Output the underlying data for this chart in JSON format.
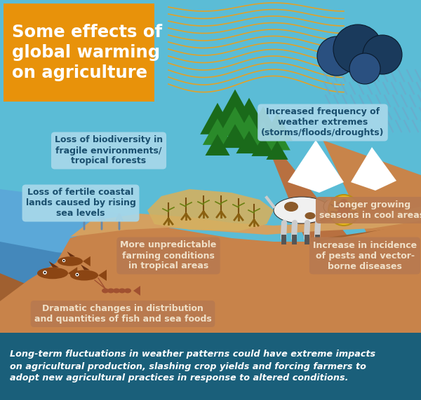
{
  "bg_color": "#5bbcd6",
  "footer_bg_color": "#1a5f7a",
  "title_bg_color": "#e8920a",
  "title_color": "#ffffff",
  "footer_color": "#ffffff",
  "label_bg_light": "#a8d8ea",
  "label_bg_brown": "#b87a50",
  "label_tc_dark": "#1a4f6e",
  "label_tc_light": "#f0e0c8",
  "ground_mid": "#c8834a",
  "ground_dark": "#a06030",
  "ground_light": "#d4a060",
  "sea_light": "#5ba8d8",
  "sea_mid": "#4488bb",
  "sea_dark": "#2a6090",
  "wave_color": "#e8a020",
  "cloud_dark": "#1a3a5c",
  "cloud_mid": "#2a5080",
  "rain_color": "#6aaccc",
  "tree_dark": "#1a6a1a",
  "tree_mid": "#2a8a2a",
  "trunk_color": "#6a3a10",
  "crop_fill": "#d4a830",
  "fish_color": "#8b4513",
  "cow_white": "#f0f0f0",
  "cow_spot": "#2a2a2a",
  "bug_yellow": "#e8b820",
  "bug_red": "#8b1010",
  "arrow_color": "#6688aa",
  "labels": {
    "title": "Some effects of\nglobal warming\non agriculture",
    "biodiversity": "Loss of biodiversity in\nfragile environments/\ntropical forests",
    "coastal": "Loss of fertile coastal\nlands caused by rising\nsea levels",
    "extremes": "Increased frequency of\nweather extremes\n(storms/floods/droughts)",
    "growing": "Longer growing\nseasons in cool areas",
    "unpredictable": "More unpredictable\nfarming conditions\nin tropical areas",
    "pests": "Increase in incidence\nof pests and vector-\nborne diseases",
    "fish": "Dramatic changes in distribution\nand quantities of fish and sea foods"
  },
  "footer_text": "Long-term fluctuations in weather patterns could have extreme impacts\non agricultural production, slashing crop yields and forcing farmers to\nadopt new agricultural practices in response to altered conditions."
}
